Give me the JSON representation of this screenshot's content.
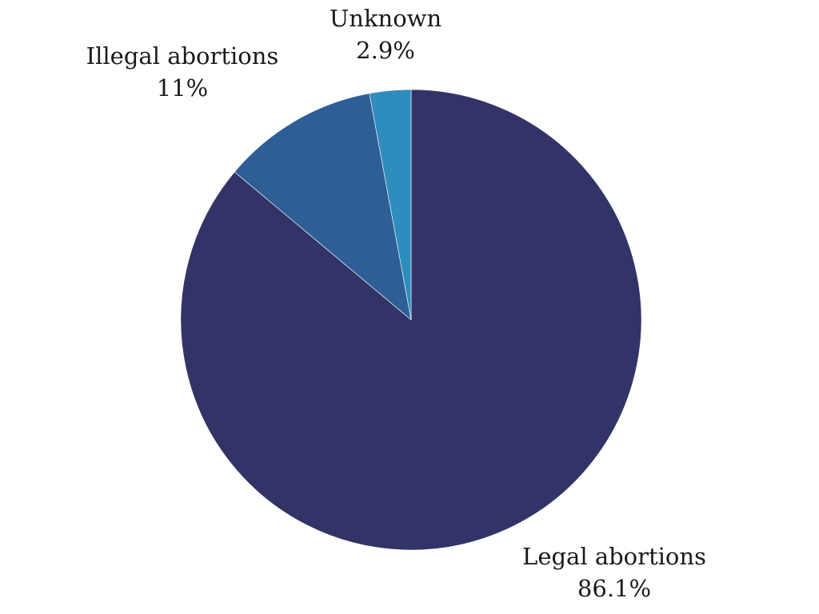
{
  "chart_data": {
    "type": "pie",
    "title": "",
    "slices": [
      {
        "label": "Legal abortions",
        "value": 86.1,
        "display": "86.1%",
        "color": "#323468"
      },
      {
        "label": "Illegal abortions",
        "value": 11,
        "display": "11%",
        "color": "#2e5e96"
      },
      {
        "label": "Unknown",
        "value": 2.9,
        "display": "2.9%",
        "color": "#2f8dbd"
      }
    ],
    "start_angle_deg": 0,
    "direction": "clockwise",
    "legend": "none",
    "labels": "outside"
  }
}
